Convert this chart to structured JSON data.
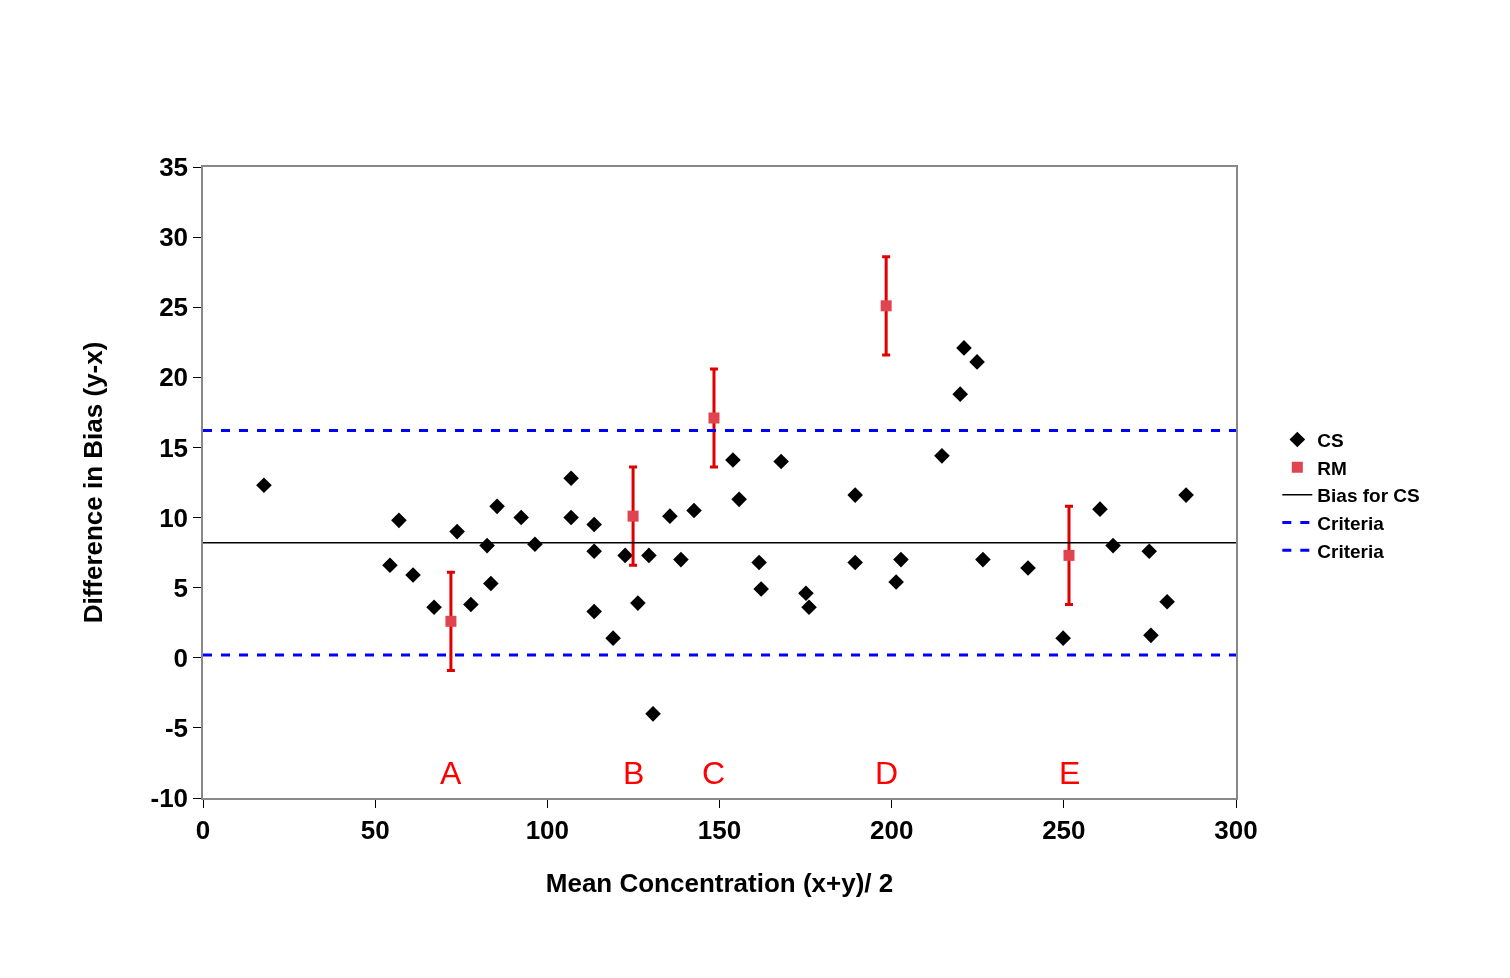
{
  "chart_data": {
    "type": "scatter",
    "xlabel": "Mean Concentration (x+y)/ 2",
    "ylabel": "Difference in Bias (y-x)",
    "xlim": [
      0,
      300
    ],
    "xticks": [
      0,
      50,
      100,
      150,
      200,
      250,
      300
    ],
    "ylim": [
      -10,
      35
    ],
    "yticks": [
      -10,
      -5,
      0,
      5,
      10,
      15,
      20,
      25,
      30,
      35
    ],
    "grid": false,
    "legend": "right",
    "series": [
      {
        "name": "CS",
        "color": "#000000",
        "marker": "diamond",
        "x": [
          17.7,
          54.3,
          56.9,
          61.0,
          67.1,
          73.8,
          77.8,
          82.5,
          83.6,
          85.4,
          92.4,
          96.4,
          106.9,
          106.9,
          113.6,
          113.6,
          113.6,
          119.1,
          122.6,
          126.3,
          129.5,
          130.7,
          135.6,
          138.8,
          142.6,
          153.9,
          155.7,
          161.5,
          162.1,
          167.9,
          175.1,
          176.0,
          189.4,
          189.4,
          201.3,
          202.7,
          214.6,
          219.9,
          221.0,
          224.8,
          226.5,
          239.6,
          249.8,
          260.5,
          264.3,
          274.8,
          275.3,
          280.0,
          285.5
        ],
        "values": [
          12.3,
          6.6,
          9.8,
          5.9,
          3.6,
          9.0,
          3.8,
          8.0,
          5.3,
          10.8,
          10.0,
          8.1,
          12.8,
          10.0,
          9.5,
          7.6,
          3.3,
          1.4,
          7.3,
          3.9,
          7.3,
          -4.0,
          10.1,
          7.0,
          10.5,
          14.1,
          11.3,
          6.8,
          4.9,
          14.0,
          4.6,
          3.6,
          11.6,
          6.8,
          5.4,
          7.0,
          14.4,
          18.8,
          22.1,
          21.1,
          7.0,
          6.4,
          1.4,
          10.6,
          8.0,
          7.6,
          1.6,
          4.0,
          11.6
        ]
      },
      {
        "name": "RM",
        "color": "#e0454f",
        "marker": "square",
        "x": [
          72.0,
          124.9,
          148.4,
          198.4,
          251.5
        ],
        "values": [
          2.6,
          10.1,
          17.1,
          25.1,
          7.3
        ],
        "errors": [
          3.5,
          3.5,
          3.5,
          3.5,
          3.5
        ]
      }
    ],
    "ref_lines": [
      {
        "axis": "y",
        "value": 8.2,
        "label": "Bias for CS",
        "color": "#000000",
        "line_style": "solid"
      },
      {
        "axis": "y",
        "value": 16.2,
        "label": "Criteria",
        "color": "#0000ff",
        "line_style": "dashed"
      },
      {
        "axis": "y",
        "value": 0.2,
        "label": "Criteria",
        "color": "#0000ff",
        "line_style": "dashed"
      }
    ],
    "annotations": [
      "A",
      "B",
      "C",
      "D",
      "E"
    ]
  }
}
